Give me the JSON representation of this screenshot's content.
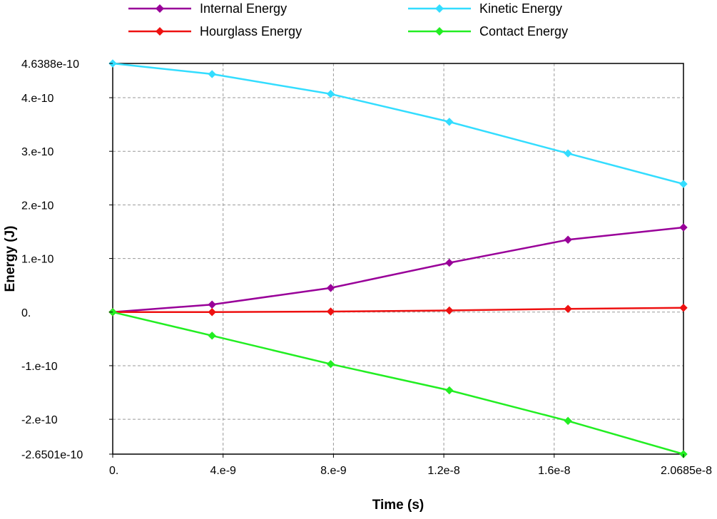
{
  "chart_data": {
    "type": "line",
    "xlabel": "Time (s)",
    "ylabel": "Energy (J)",
    "xlim": [
      0,
      2.0685e-08
    ],
    "ylim": [
      -2.6501e-10,
      4.6388e-10
    ],
    "x_ticks": [
      {
        "value": 0,
        "label": "0."
      },
      {
        "value": 4e-09,
        "label": "4.e-9"
      },
      {
        "value": 8e-09,
        "label": "8.e-9"
      },
      {
        "value": 1.2e-08,
        "label": "1.2e-8"
      },
      {
        "value": 1.6e-08,
        "label": "1.6e-8"
      },
      {
        "value": 2.0685e-08,
        "label": "2.0685e-8"
      }
    ],
    "y_ticks": [
      {
        "value": 4.6388e-10,
        "label": "4.6388e-10"
      },
      {
        "value": 4e-10,
        "label": "4.e-10"
      },
      {
        "value": 3e-10,
        "label": "3.e-10"
      },
      {
        "value": 2e-10,
        "label": "2.e-10"
      },
      {
        "value": 1e-10,
        "label": "1.e-10"
      },
      {
        "value": 0,
        "label": "0."
      },
      {
        "value": -1e-10,
        "label": "-1.e-10"
      },
      {
        "value": -2e-10,
        "label": "-2.e-10"
      },
      {
        "value": -2.6501e-10,
        "label": "-2.6501e-10"
      }
    ],
    "grid": true,
    "legend_position": "top",
    "series": [
      {
        "name": "Internal Energy",
        "color": "#990099",
        "x": [
          0,
          3.6e-09,
          7.9e-09,
          1.22e-08,
          1.65e-08,
          2.0685e-08
        ],
        "y": [
          0,
          1.4e-11,
          4.5e-11,
          9.2e-11,
          1.35e-10,
          1.58e-10
        ]
      },
      {
        "name": "Kinetic Energy",
        "color": "#33ddff",
        "x": [
          0,
          3.6e-09,
          7.9e-09,
          1.22e-08,
          1.65e-08,
          2.0685e-08
        ],
        "y": [
          4.6388e-10,
          4.44e-10,
          4.07e-10,
          3.55e-10,
          2.96e-10,
          2.39e-10
        ]
      },
      {
        "name": "Hourglass Energy",
        "color": "#ee1111",
        "x": [
          0,
          3.6e-09,
          7.9e-09,
          1.22e-08,
          1.65e-08,
          2.0685e-08
        ],
        "y": [
          0,
          0,
          1e-12,
          3e-12,
          6e-12,
          8e-12
        ]
      },
      {
        "name": "Contact Energy",
        "color": "#22ee22",
        "x": [
          0,
          3.6e-09,
          7.9e-09,
          1.22e-08,
          1.65e-08,
          2.0685e-08
        ],
        "y": [
          0,
          -4.4e-11,
          -9.7e-11,
          -1.46e-10,
          -2.03e-10,
          -2.6501e-10
        ]
      }
    ]
  }
}
